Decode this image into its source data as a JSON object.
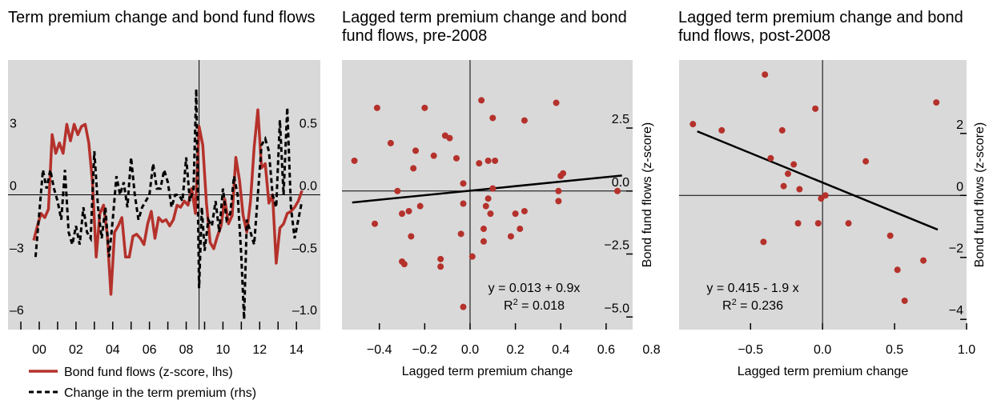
{
  "colors": {
    "plot_bg": "#d9d9d9",
    "flows": "#b5312b",
    "premium": "#000000",
    "dots": "#b5312b",
    "fit": "#000000"
  },
  "chart_data": [
    {
      "type": "line",
      "title": "Term premium change and bond fund flows",
      "x_tick_labels": [
        "00",
        "02",
        "04",
        "06",
        "08",
        "10",
        "12",
        "14"
      ],
      "x_tick_values": [
        2000,
        2002,
        2004,
        2006,
        2008,
        2010,
        2012,
        2014
      ],
      "xlim": [
        1998.3,
        2015.3
      ],
      "vline_x": 2008.7,
      "ylim_left": [
        -6.5,
        6.5
      ],
      "ylim_right": [
        -1.083,
        1.083
      ],
      "yticks_left": [
        {
          "v": 3,
          "label": "3"
        },
        {
          "v": 0,
          "label": "0"
        },
        {
          "v": -3,
          "label": "–3"
        },
        {
          "v": -6,
          "label": "–6"
        }
      ],
      "yticks_right": [
        {
          "v": 0.5,
          "label": "0.5"
        },
        {
          "v": 0.0,
          "label": "0.0"
        },
        {
          "v": -0.5,
          "label": "–0.5"
        },
        {
          "v": -1.0,
          "label": "–1.0"
        }
      ],
      "series": [
        {
          "name": "Bond fund flows (z-score, lhs)",
          "axis": "left",
          "x": [
            1999.7,
            1999.9,
            2000.1,
            2000.3,
            2000.5,
            2000.7,
            2000.9,
            2001.1,
            2001.3,
            2001.5,
            2001.7,
            2001.9,
            2002.1,
            2002.3,
            2002.5,
            2002.7,
            2002.9,
            2003.1,
            2003.3,
            2003.5,
            2003.7,
            2003.9,
            2004.1,
            2004.3,
            2004.5,
            2004.7,
            2004.9,
            2005.1,
            2005.3,
            2005.5,
            2005.7,
            2005.9,
            2006.1,
            2006.3,
            2006.5,
            2006.7,
            2006.9,
            2007.1,
            2007.3,
            2007.5,
            2007.7,
            2007.9,
            2008.1,
            2008.3,
            2008.5,
            2008.7,
            2008.9,
            2009.1,
            2009.3,
            2009.5,
            2009.7,
            2009.9,
            2010.1,
            2010.3,
            2010.5,
            2010.7,
            2010.9,
            2011.1,
            2011.3,
            2011.5,
            2011.7,
            2011.9,
            2012.1,
            2012.3,
            2012.5,
            2012.7,
            2012.9,
            2013.1,
            2013.3,
            2013.5,
            2013.7,
            2013.9,
            2014.1,
            2014.3
          ],
          "values": [
            -2.2,
            -1.5,
            -0.9,
            -1.1,
            -0.7,
            2.9,
            2.0,
            2.5,
            2.0,
            3.4,
            2.6,
            3.4,
            2.9,
            3.3,
            3.4,
            2.5,
            0.6,
            -3.0,
            -0.9,
            -0.5,
            -1.9,
            -4.8,
            -1.8,
            -1.5,
            -1.1,
            -3.0,
            -3.0,
            -2.0,
            -1.9,
            -2.1,
            -2.4,
            -1.4,
            -0.8,
            -2.1,
            -1.1,
            -1.3,
            -1.2,
            -1.5,
            -1.2,
            -0.5,
            -0.6,
            -0.3,
            -0.5,
            0.3,
            -0.9,
            3.3,
            2.4,
            -0.4,
            -2.3,
            -2.6,
            -2.0,
            -1.5,
            -0.2,
            -1.4,
            -1.0,
            1.8,
            0.7,
            -1.0,
            -1.8,
            -0.3,
            2.3,
            4.1,
            1.3,
            1.5,
            -0.4,
            0.0,
            -3.3,
            -1.6,
            -1.4,
            -0.9,
            -0.8,
            -0.6,
            -0.3,
            0.2
          ]
        },
        {
          "name": "Change in the term premium (rhs)",
          "axis": "right",
          "x": [
            1999.8,
            2000.0,
            2000.2,
            2000.4,
            2000.6,
            2000.8,
            2001.0,
            2001.2,
            2001.4,
            2001.6,
            2001.8,
            2002.0,
            2002.2,
            2002.4,
            2002.6,
            2002.8,
            2003.0,
            2003.2,
            2003.4,
            2003.6,
            2003.8,
            2004.0,
            2004.2,
            2004.4,
            2004.6,
            2004.8,
            2005.0,
            2005.2,
            2005.4,
            2005.6,
            2005.8,
            2006.0,
            2006.2,
            2006.4,
            2006.6,
            2006.8,
            2007.0,
            2007.2,
            2007.4,
            2007.6,
            2007.8,
            2008.0,
            2008.2,
            2008.4,
            2008.55,
            2008.7,
            2008.85,
            2009.0,
            2009.2,
            2009.4,
            2009.6,
            2009.8,
            2010.0,
            2010.2,
            2010.4,
            2010.6,
            2010.8,
            2011.0,
            2011.15,
            2011.3,
            2011.5,
            2011.7,
            2011.9,
            2012.1,
            2012.3,
            2012.5,
            2012.7,
            2012.9,
            2013.1,
            2013.3,
            2013.5,
            2013.7,
            2013.9,
            2014.1,
            2014.3
          ],
          "values": [
            -0.5,
            -0.15,
            0.2,
            0.05,
            0.2,
            0.05,
            -0.05,
            -0.2,
            0.2,
            -0.3,
            -0.4,
            -0.25,
            -0.4,
            -0.1,
            -0.3,
            -0.35,
            0.35,
            -0.1,
            -0.35,
            -0.1,
            -0.5,
            -0.2,
            0.15,
            0.0,
            0.1,
            -0.1,
            0.3,
            0.0,
            -0.2,
            -0.1,
            -0.05,
            0.0,
            0.25,
            0.05,
            0.05,
            0.2,
            0.1,
            -0.1,
            0.0,
            0.0,
            -0.05,
            0.3,
            -0.05,
            0.05,
            0.85,
            -0.75,
            -0.1,
            -0.45,
            -0.2,
            -0.25,
            -0.05,
            -0.3,
            0.05,
            -0.2,
            -0.15,
            0.15,
            0.0,
            -0.5,
            -1.0,
            -0.2,
            -0.3,
            -0.4,
            0.0,
            0.4,
            0.45,
            0.35,
            0.0,
            -0.1,
            0.6,
            0.0,
            0.7,
            -0.1,
            -0.35,
            -0.2,
            -0.05
          ]
        }
      ],
      "legend": [
        {
          "label": "Bond fund flows (z-score, lhs)",
          "style": "solid"
        },
        {
          "label": "Change in the term premium (rhs)",
          "style": "dashed"
        }
      ]
    },
    {
      "type": "scatter",
      "title": "Lagged term premium change and bond fund flows, pre-2008",
      "xlabel": "Lagged term premium change",
      "ylabel": "Bond fund flows (z-score)",
      "xlim": [
        -0.565,
        0.717
      ],
      "ylim": [
        -5.5,
        5.2
      ],
      "xticks": [
        {
          "v": -0.4,
          "label": "−0.4"
        },
        {
          "v": -0.2,
          "label": "−0.2"
        },
        {
          "v": 0.0,
          "label": "0.0"
        },
        {
          "v": 0.2,
          "label": "0.2"
        },
        {
          "v": 0.4,
          "label": "0.4"
        },
        {
          "v": 0.6,
          "label": "0.6"
        },
        {
          "v": 0.8,
          "label": "0.8"
        }
      ],
      "yticks": [
        {
          "v": 2.5,
          "label": "2.5"
        },
        {
          "v": 0.0,
          "label": "0.0"
        },
        {
          "v": -2.5,
          "label": "−2.5"
        },
        {
          "v": -5.0,
          "label": "−5.0"
        }
      ],
      "fit": {
        "intercept": 0.013,
        "slope": 0.9,
        "x_range": [
          -0.52,
          0.67
        ]
      },
      "equation": "y = 0.013 + 0.9x",
      "r2_label": "R",
      "r2_value": "= 0.018",
      "points": [
        {
          "x": -0.51,
          "y": 1.2
        },
        {
          "x": -0.41,
          "y": 3.3
        },
        {
          "x": -0.42,
          "y": -1.3
        },
        {
          "x": -0.35,
          "y": 1.9
        },
        {
          "x": -0.32,
          "y": 0.0
        },
        {
          "x": -0.3,
          "y": -0.9
        },
        {
          "x": -0.3,
          "y": -2.8
        },
        {
          "x": -0.29,
          "y": -2.9
        },
        {
          "x": -0.27,
          "y": -0.8
        },
        {
          "x": -0.26,
          "y": -1.8
        },
        {
          "x": -0.25,
          "y": 0.9
        },
        {
          "x": -0.24,
          "y": 1.6
        },
        {
          "x": -0.22,
          "y": -0.6
        },
        {
          "x": -0.2,
          "y": 3.3
        },
        {
          "x": -0.16,
          "y": 1.4
        },
        {
          "x": -0.13,
          "y": -2.7
        },
        {
          "x": -0.13,
          "y": -3.0
        },
        {
          "x": -0.11,
          "y": 2.2
        },
        {
          "x": -0.09,
          "y": 2.1
        },
        {
          "x": -0.06,
          "y": 1.3
        },
        {
          "x": -0.03,
          "y": 0.3
        },
        {
          "x": -0.03,
          "y": -0.5
        },
        {
          "x": -0.04,
          "y": -1.7
        },
        {
          "x": -0.03,
          "y": -4.6
        },
        {
          "x": 0.01,
          "y": -2.6
        },
        {
          "x": 0.04,
          "y": 1.1
        },
        {
          "x": 0.05,
          "y": 3.6
        },
        {
          "x": 0.06,
          "y": -1.5
        },
        {
          "x": 0.06,
          "y": -2.0
        },
        {
          "x": 0.07,
          "y": -0.6
        },
        {
          "x": 0.08,
          "y": 1.2
        },
        {
          "x": 0.08,
          "y": -0.3
        },
        {
          "x": 0.09,
          "y": -0.9
        },
        {
          "x": 0.1,
          "y": 2.9
        },
        {
          "x": 0.1,
          "y": 0.1
        },
        {
          "x": 0.11,
          "y": 1.2
        },
        {
          "x": 0.18,
          "y": -1.8
        },
        {
          "x": 0.2,
          "y": -0.9
        },
        {
          "x": 0.22,
          "y": -1.5
        },
        {
          "x": 0.24,
          "y": 2.8
        },
        {
          "x": 0.24,
          "y": -0.8
        },
        {
          "x": 0.38,
          "y": 3.5
        },
        {
          "x": 0.39,
          "y": 0.0
        },
        {
          "x": 0.39,
          "y": -0.4
        },
        {
          "x": 0.4,
          "y": 0.6
        },
        {
          "x": 0.41,
          "y": 0.7
        },
        {
          "x": 0.65,
          "y": 0.0
        }
      ]
    },
    {
      "type": "scatter",
      "title": "Lagged term premium change and bond fund flows, post-2008",
      "xlabel": "Lagged term premium change",
      "ylabel": "Bond fund flows (z-score)",
      "xlim": [
        -0.996,
        1.0
      ],
      "ylim": [
        -4.33,
        4.37
      ],
      "xticks": [
        {
          "v": -0.5,
          "label": "−0.5"
        },
        {
          "v": 0.0,
          "label": "0.0"
        },
        {
          "v": 0.5,
          "label": "0.5"
        },
        {
          "v": 1.0,
          "label": "1.0"
        }
      ],
      "yticks": [
        {
          "v": 2,
          "label": "2"
        },
        {
          "v": 0,
          "label": "0"
        },
        {
          "v": -2,
          "label": "−2"
        },
        {
          "v": -4,
          "label": "−4"
        }
      ],
      "fit": {
        "intercept": 0.415,
        "slope": -1.9,
        "x_range": [
          -0.87,
          0.8
        ]
      },
      "equation": "y = 0.415 - 1.9 x",
      "r2_label": "R",
      "r2_value": "= 0.236",
      "points": [
        {
          "x": -0.9,
          "y": 2.3
        },
        {
          "x": -0.7,
          "y": 2.1
        },
        {
          "x": -0.4,
          "y": 3.9
        },
        {
          "x": -0.41,
          "y": -1.5
        },
        {
          "x": -0.36,
          "y": 1.2
        },
        {
          "x": -0.28,
          "y": 2.1
        },
        {
          "x": -0.27,
          "y": 0.3
        },
        {
          "x": -0.24,
          "y": 0.7
        },
        {
          "x": -0.2,
          "y": 1.0
        },
        {
          "x": -0.16,
          "y": 0.2
        },
        {
          "x": -0.17,
          "y": -0.9
        },
        {
          "x": -0.05,
          "y": 2.8
        },
        {
          "x": -0.03,
          "y": -0.9
        },
        {
          "x": -0.01,
          "y": -0.1
        },
        {
          "x": 0.02,
          "y": 0.0
        },
        {
          "x": 0.18,
          "y": -0.9
        },
        {
          "x": 0.3,
          "y": 1.1
        },
        {
          "x": 0.47,
          "y": -1.3
        },
        {
          "x": 0.52,
          "y": -2.4
        },
        {
          "x": 0.57,
          "y": -3.4
        },
        {
          "x": 0.7,
          "y": -2.1
        },
        {
          "x": 0.79,
          "y": 3.0
        }
      ]
    }
  ]
}
